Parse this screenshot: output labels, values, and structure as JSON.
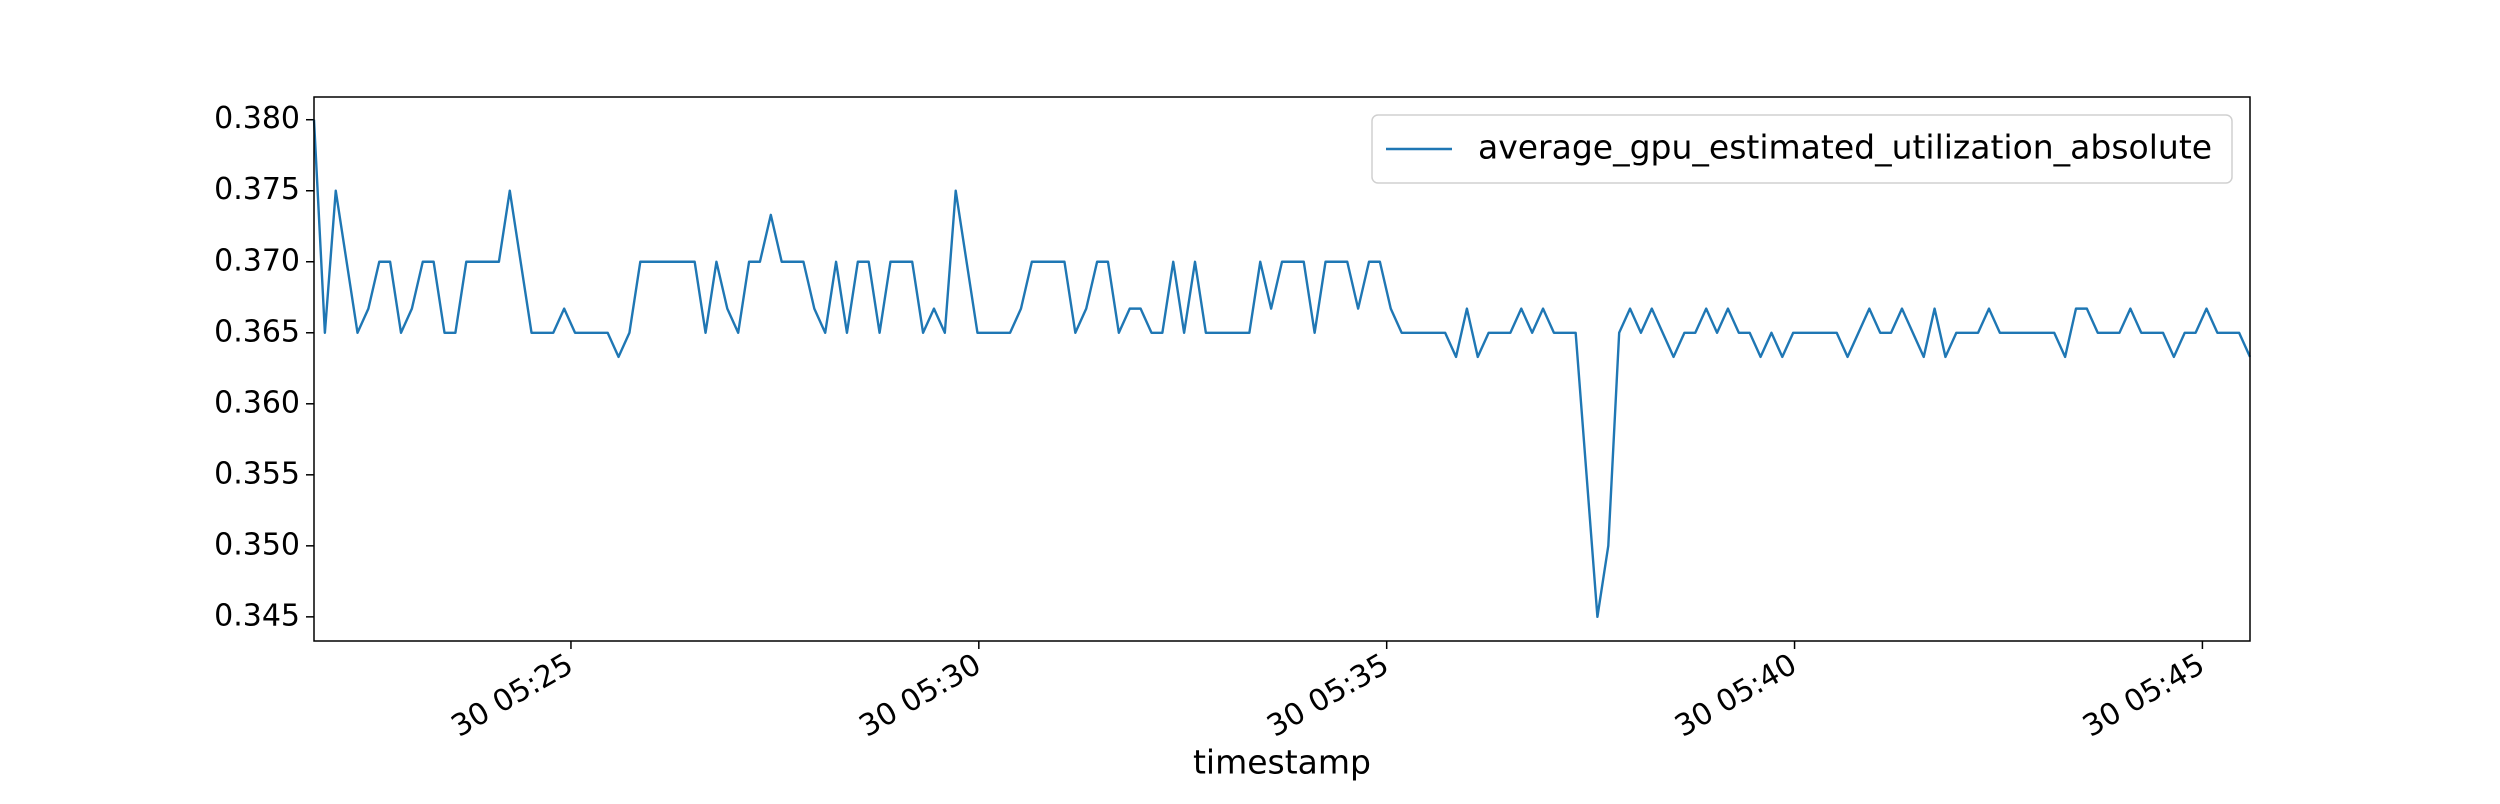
{
  "chart_data": {
    "type": "line",
    "x_label": "timestamp",
    "x": [
      "30 05:21:51",
      "30 05:21:59",
      "30 05:22:07",
      "30 05:22:15",
      "30 05:22:23",
      "30 05:22:31",
      "30 05:22:39",
      "30 05:22:47",
      "30 05:22:55",
      "30 05:23:03",
      "30 05:23:11",
      "30 05:23:19",
      "30 05:23:27",
      "30 05:23:35",
      "30 05:23:43",
      "30 05:23:51",
      "30 05:23:59",
      "30 05:24:07",
      "30 05:24:15",
      "30 05:24:23",
      "30 05:24:31",
      "30 05:24:39",
      "30 05:24:47",
      "30 05:24:55",
      "30 05:25:03",
      "30 05:25:11",
      "30 05:25:19",
      "30 05:25:27",
      "30 05:25:35",
      "30 05:25:43",
      "30 05:25:51",
      "30 05:25:59",
      "30 05:26:07",
      "30 05:26:15",
      "30 05:26:23",
      "30 05:26:31",
      "30 05:26:39",
      "30 05:26:47",
      "30 05:26:55",
      "30 05:27:03",
      "30 05:27:11",
      "30 05:27:19",
      "30 05:27:27",
      "30 05:27:35",
      "30 05:27:43",
      "30 05:27:51",
      "30 05:27:59",
      "30 05:28:07",
      "30 05:28:15",
      "30 05:28:23",
      "30 05:28:31",
      "30 05:28:39",
      "30 05:28:47",
      "30 05:28:55",
      "30 05:29:03",
      "30 05:29:11",
      "30 05:29:19",
      "30 05:29:27",
      "30 05:29:35",
      "30 05:29:43",
      "30 05:29:51",
      "30 05:29:59",
      "30 05:30:07",
      "30 05:30:15",
      "30 05:30:23",
      "30 05:30:31",
      "30 05:30:39",
      "30 05:30:47",
      "30 05:30:55",
      "30 05:31:03",
      "30 05:31:11",
      "30 05:31:19",
      "30 05:31:27",
      "30 05:31:35",
      "30 05:31:43",
      "30 05:31:51",
      "30 05:31:59",
      "30 05:32:07",
      "30 05:32:15",
      "30 05:32:23",
      "30 05:32:31",
      "30 05:32:39",
      "30 05:32:47",
      "30 05:32:55",
      "30 05:33:03",
      "30 05:33:11",
      "30 05:33:19",
      "30 05:33:27",
      "30 05:33:35",
      "30 05:33:43",
      "30 05:33:51",
      "30 05:33:59",
      "30 05:34:07",
      "30 05:34:15",
      "30 05:34:23",
      "30 05:34:31",
      "30 05:34:39",
      "30 05:34:47",
      "30 05:34:55",
      "30 05:35:03",
      "30 05:35:11",
      "30 05:35:19",
      "30 05:35:27",
      "30 05:35:35",
      "30 05:35:43",
      "30 05:35:51",
      "30 05:35:59",
      "30 05:36:07",
      "30 05:36:15",
      "30 05:36:23",
      "30 05:36:31",
      "30 05:36:39",
      "30 05:36:47",
      "30 05:36:55",
      "30 05:37:03",
      "30 05:37:11",
      "30 05:37:19",
      "30 05:37:27",
      "30 05:37:35",
      "30 05:37:43",
      "30 05:37:51",
      "30 05:37:59",
      "30 05:38:07",
      "30 05:38:15",
      "30 05:38:23",
      "30 05:38:31",
      "30 05:38:39",
      "30 05:38:47",
      "30 05:38:55",
      "30 05:39:03",
      "30 05:39:11",
      "30 05:39:19",
      "30 05:39:27",
      "30 05:39:35",
      "30 05:39:43",
      "30 05:39:51",
      "30 05:39:59",
      "30 05:40:07",
      "30 05:40:15",
      "30 05:40:23",
      "30 05:40:31",
      "30 05:40:39",
      "30 05:40:47",
      "30 05:40:55",
      "30 05:41:03",
      "30 05:41:11",
      "30 05:41:19",
      "30 05:41:27",
      "30 05:41:35",
      "30 05:41:43",
      "30 05:41:51",
      "30 05:41:59",
      "30 05:42:07",
      "30 05:42:15",
      "30 05:42:23",
      "30 05:42:31",
      "30 05:42:39",
      "30 05:42:47",
      "30 05:42:55",
      "30 05:43:03",
      "30 05:43:11",
      "30 05:43:19",
      "30 05:43:27",
      "30 05:43:35",
      "30 05:43:43",
      "30 05:43:51",
      "30 05:43:59",
      "30 05:44:07",
      "30 05:44:15",
      "30 05:44:23",
      "30 05:44:31",
      "30 05:44:39",
      "30 05:44:47",
      "30 05:44:55",
      "30 05:45:03",
      "30 05:45:11",
      "30 05:45:19",
      "30 05:45:27",
      "30 05:45:35"
    ],
    "series": [
      {
        "name": "average_gpu_estimated_utilization_absolute",
        "color": "#1f77b4",
        "values": [
          0.38,
          0.365,
          0.375,
          0.37,
          0.365,
          0.3667,
          0.37,
          0.37,
          0.365,
          0.3667,
          0.37,
          0.37,
          0.365,
          0.365,
          0.37,
          0.37,
          0.37,
          0.37,
          0.375,
          0.37,
          0.365,
          0.365,
          0.365,
          0.3667,
          0.365,
          0.365,
          0.365,
          0.365,
          0.3633,
          0.365,
          0.37,
          0.37,
          0.37,
          0.37,
          0.37,
          0.37,
          0.365,
          0.37,
          0.3667,
          0.365,
          0.37,
          0.37,
          0.3733,
          0.37,
          0.37,
          0.37,
          0.3667,
          0.365,
          0.37,
          0.365,
          0.37,
          0.37,
          0.365,
          0.37,
          0.37,
          0.37,
          0.365,
          0.3667,
          0.365,
          0.375,
          0.37,
          0.365,
          0.365,
          0.365,
          0.365,
          0.3667,
          0.37,
          0.37,
          0.37,
          0.37,
          0.365,
          0.3667,
          0.37,
          0.37,
          0.365,
          0.3667,
          0.3667,
          0.365,
          0.365,
          0.37,
          0.365,
          0.37,
          0.365,
          0.365,
          0.365,
          0.365,
          0.365,
          0.37,
          0.3667,
          0.37,
          0.37,
          0.37,
          0.365,
          0.37,
          0.37,
          0.37,
          0.3667,
          0.37,
          0.37,
          0.3667,
          0.365,
          0.365,
          0.365,
          0.365,
          0.365,
          0.3633,
          0.3667,
          0.3633,
          0.365,
          0.365,
          0.365,
          0.3667,
          0.365,
          0.3667,
          0.365,
          0.365,
          0.365,
          0.355,
          0.345,
          0.35,
          0.365,
          0.3667,
          0.365,
          0.3667,
          0.365,
          0.3633,
          0.365,
          0.365,
          0.3667,
          0.365,
          0.3667,
          0.365,
          0.365,
          0.3633,
          0.365,
          0.3633,
          0.365,
          0.365,
          0.365,
          0.365,
          0.365,
          0.3633,
          0.365,
          0.3667,
          0.365,
          0.365,
          0.3667,
          0.365,
          0.3633,
          0.3667,
          0.3633,
          0.365,
          0.365,
          0.365,
          0.3667,
          0.365,
          0.365,
          0.365,
          0.365,
          0.365,
          0.365,
          0.3633,
          0.3667,
          0.3667,
          0.365,
          0.365,
          0.365,
          0.3667,
          0.365,
          0.365,
          0.365,
          0.3633,
          0.365,
          0.365,
          0.3667,
          0.365,
          0.365,
          0.365,
          0.3633
        ]
      }
    ],
    "xlim": [
      "30 05:21:51",
      "30 05:45:35"
    ],
    "xticks": [
      "30 05:25",
      "30 05:30",
      "30 05:35",
      "30 05:40",
      "30 05:45"
    ],
    "ylim": [
      0.3433,
      0.3816
    ],
    "yticks": [
      0.345,
      {
        "value": 0.35,
        "label": "0.350"
      },
      0.355,
      {
        "value": 0.36,
        "label": "0.360"
      },
      0.365,
      {
        "value": 0.37,
        "label": "0.370"
      },
      0.375,
      {
        "value": 0.38,
        "label": "0.380"
      }
    ],
    "legend": "upper right",
    "grid": false
  }
}
